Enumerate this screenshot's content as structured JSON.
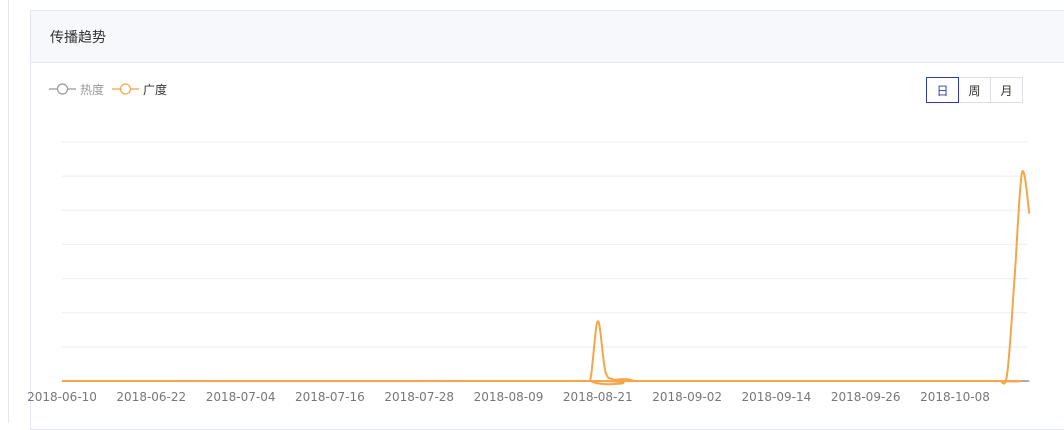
{
  "panel": {
    "title": "传播趋势"
  },
  "legend": [
    {
      "label": "热度",
      "color": "#999999"
    },
    {
      "label": "广度",
      "color": "#f7a54a"
    }
  ],
  "period": {
    "options": [
      "日",
      "周",
      "月"
    ],
    "selected": "日"
  },
  "colors": {
    "grid": "#eeeeee",
    "axis": "#cccccc",
    "tick_text": "#777777",
    "active": "#2b3ba8"
  },
  "chart_data": {
    "type": "line",
    "x_start": "2018-06-10",
    "x_tick_labels": [
      "2018-06-10",
      "2018-06-22",
      "2018-07-04",
      "2018-07-16",
      "2018-07-28",
      "2018-08-09",
      "2018-08-21",
      "2018-09-02",
      "2018-09-14",
      "2018-09-26",
      "2018-10-08"
    ],
    "ylim": [
      0,
      7
    ],
    "grid": true,
    "legend_position": "top-left",
    "series": [
      {
        "name": "热度",
        "x": [
          "2018-06-10",
          "2018-10-18"
        ],
        "values": [
          0,
          0
        ]
      },
      {
        "name": "广度",
        "x": [
          "2018-06-10",
          "2018-08-19",
          "2018-08-20",
          "2018-08-21",
          "2018-08-22",
          "2018-08-23",
          "2018-08-24",
          "2018-08-25",
          "2018-08-26",
          "2018-08-27",
          "2018-10-13",
          "2018-10-14",
          "2018-10-15",
          "2018-10-16",
          "2018-10-17",
          "2018-10-18"
        ],
        "values": [
          0,
          0,
          0.05,
          1.75,
          0.3,
          0.05,
          0.05,
          0.05,
          0,
          0,
          0,
          0,
          0.2,
          3.0,
          6.1,
          4.9
        ]
      }
    ]
  }
}
